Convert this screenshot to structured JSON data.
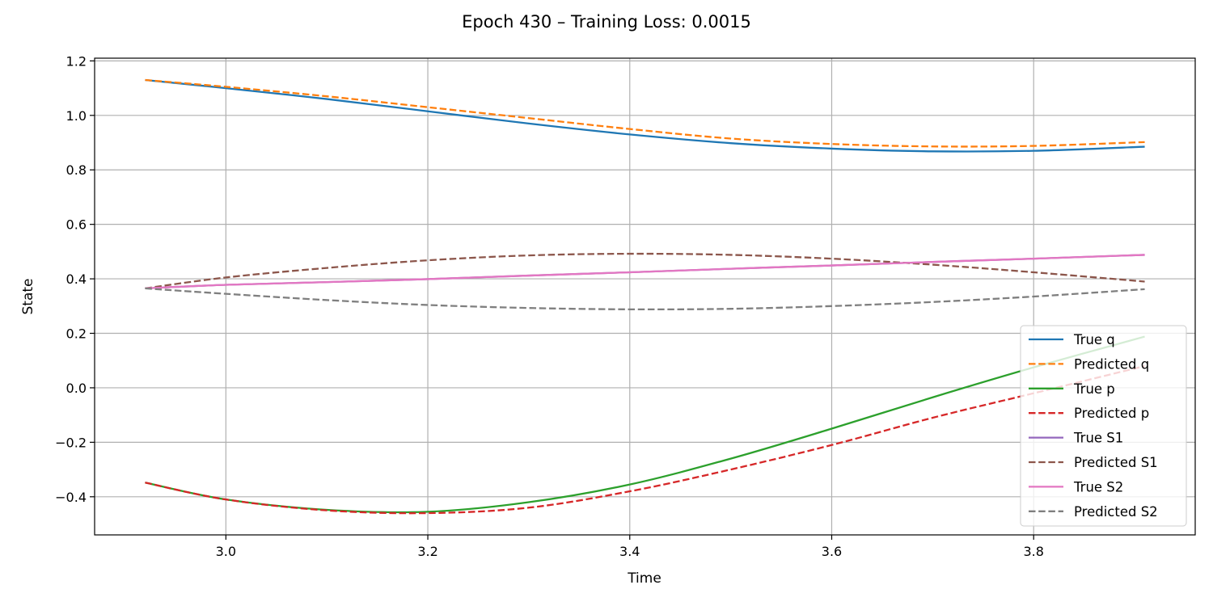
{
  "chart_data": {
    "type": "line",
    "title": "Epoch 430 – Training Loss: 0.0015",
    "xlabel": "Time",
    "ylabel": "State",
    "xlim": [
      2.87,
      3.96
    ],
    "ylim": [
      -0.54,
      1.21
    ],
    "xticks": [
      3.0,
      3.2,
      3.4,
      3.6,
      3.8
    ],
    "xtick_labels": [
      "3.0",
      "3.2",
      "3.4",
      "3.6",
      "3.8"
    ],
    "yticks": [
      -0.4,
      -0.2,
      0.0,
      0.2,
      0.4,
      0.6,
      0.8,
      1.0,
      1.2
    ],
    "ytick_labels": [
      "−0.4",
      "−0.2",
      "0.0",
      "0.2",
      "0.4",
      "0.6",
      "0.8",
      "1.0",
      "1.2"
    ],
    "grid": true,
    "legend_position": "lower-right",
    "x": [
      2.92,
      3.0,
      3.1,
      3.2,
      3.3,
      3.4,
      3.5,
      3.6,
      3.7,
      3.8,
      3.91
    ],
    "series": [
      {
        "name": "True q",
        "color": "#1f77b4",
        "dash": "solid",
        "values": [
          1.13,
          1.1,
          1.06,
          1.015,
          0.97,
          0.93,
          0.898,
          0.878,
          0.868,
          0.87,
          0.885
        ]
      },
      {
        "name": "Predicted q",
        "color": "#ff7f0e",
        "dash": "dashed",
        "values": [
          1.13,
          1.105,
          1.07,
          1.03,
          0.99,
          0.95,
          0.915,
          0.895,
          0.886,
          0.888,
          0.902
        ]
      },
      {
        "name": "True p",
        "color": "#2ca02c",
        "dash": "solid",
        "values": [
          -0.348,
          -0.41,
          -0.448,
          -0.455,
          -0.42,
          -0.355,
          -0.26,
          -0.15,
          -0.035,
          0.075,
          0.188
        ]
      },
      {
        "name": "Predicted p",
        "color": "#d62728",
        "dash": "dashed",
        "values": [
          -0.348,
          -0.41,
          -0.45,
          -0.46,
          -0.44,
          -0.38,
          -0.3,
          -0.21,
          -0.11,
          -0.02,
          0.08
        ]
      },
      {
        "name": "True S1",
        "color": "#9467bd",
        "dash": "solid",
        "values": [
          0.365,
          0.378,
          0.388,
          0.399,
          0.412,
          0.424,
          0.437,
          0.449,
          0.462,
          0.474,
          0.488
        ]
      },
      {
        "name": "Predicted S1",
        "color": "#8c564b",
        "dash": "dashed",
        "values": [
          0.365,
          0.405,
          0.44,
          0.468,
          0.486,
          0.492,
          0.488,
          0.474,
          0.452,
          0.424,
          0.39
        ]
      },
      {
        "name": "True S2",
        "color": "#e377c2",
        "dash": "solid",
        "values": [
          0.365,
          0.378,
          0.388,
          0.399,
          0.412,
          0.424,
          0.437,
          0.449,
          0.462,
          0.474,
          0.488
        ]
      },
      {
        "name": "Predicted S2",
        "color": "#7f7f7f",
        "dash": "dashed",
        "values": [
          0.365,
          0.345,
          0.322,
          0.304,
          0.293,
          0.288,
          0.29,
          0.3,
          0.315,
          0.335,
          0.362
        ]
      }
    ]
  }
}
